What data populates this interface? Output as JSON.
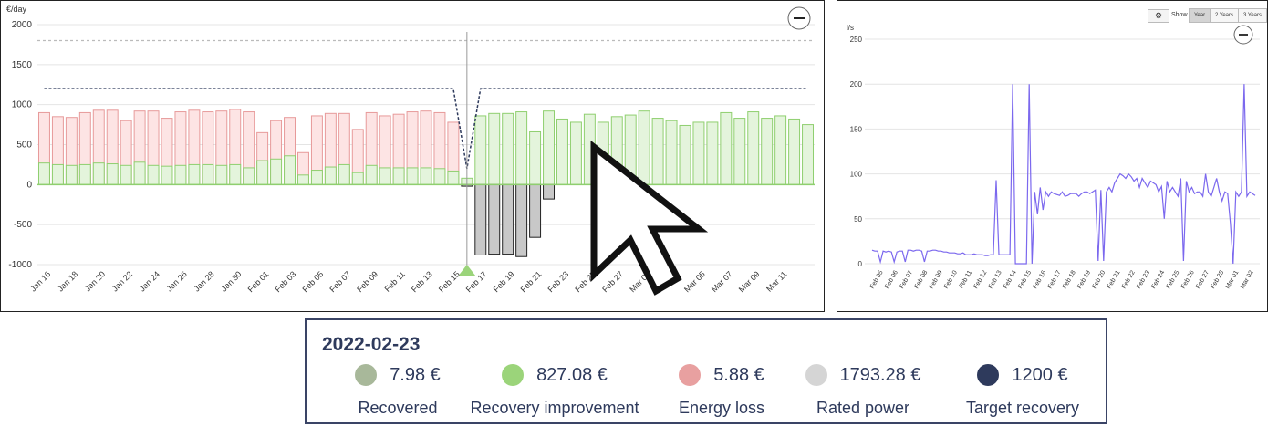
{
  "chart_data": [
    {
      "type": "bar",
      "ylabel": "€/day",
      "ylim": [
        -1000,
        2000
      ],
      "yticks": [
        "2000",
        "1500",
        "1000",
        "500",
        "0",
        "-500",
        "-1000"
      ],
      "xtick_labels": [
        "Jan 16",
        "Jan 18",
        "Jan 20",
        "Jan 22",
        "Jan 24",
        "Jan 26",
        "Jan 28",
        "Jan 30",
        "Feb 01",
        "Feb 03",
        "Feb 05",
        "Feb 07",
        "Feb 09",
        "Feb 11",
        "Feb 13",
        "Feb 15",
        "Feb 17",
        "Feb 19",
        "Feb 21",
        "Feb 23",
        "Feb 25",
        "Feb 27",
        "Mar 01",
        "Mar 03",
        "Mar 05",
        "Mar 07",
        "Mar 09",
        "Mar 11"
      ],
      "rated_power_line": 1800,
      "series": [
        {
          "key": "total",
          "values": [
            900,
            850,
            840,
            900,
            930,
            930,
            800,
            920,
            920,
            830,
            910,
            930,
            910,
            920,
            940,
            910,
            650,
            800,
            840,
            400,
            860,
            890,
            890,
            690,
            900,
            860,
            880,
            910,
            920,
            900,
            780,
            80,
            860,
            890,
            890,
            910,
            660,
            920,
            820,
            780,
            880,
            780,
            850,
            870,
            920,
            830,
            800,
            740,
            780,
            780,
            900,
            830,
            910,
            830,
            860,
            820,
            750
          ]
        },
        {
          "key": "recovered",
          "values": [
            270,
            250,
            240,
            250,
            270,
            260,
            240,
            280,
            240,
            230,
            240,
            250,
            250,
            240,
            250,
            210,
            300,
            320,
            360,
            120,
            180,
            220,
            250,
            150,
            240,
            210,
            210,
            210,
            210,
            200,
            170,
            -20,
            -880,
            -870,
            -870,
            -900,
            -660,
            -180,
            0,
            0,
            0,
            0,
            0,
            0,
            0,
            0,
            0,
            0,
            0,
            0,
            0,
            0,
            0,
            0,
            0,
            0,
            0
          ]
        },
        {
          "key": "green",
          "values": [
            0,
            0,
            0,
            0,
            0,
            0,
            0,
            0,
            0,
            0,
            0,
            0,
            0,
            0,
            0,
            0,
            0,
            0,
            0,
            0,
            0,
            0,
            0,
            0,
            0,
            0,
            0,
            0,
            0,
            0,
            0,
            80,
            860,
            890,
            890,
            910,
            660,
            920,
            820,
            780,
            880,
            780,
            850,
            870,
            920,
            830,
            800,
            740,
            780,
            780,
            900,
            830,
            910,
            830,
            860,
            820,
            750
          ]
        }
      ],
      "target_recovery": [
        1200,
        1200,
        1200,
        1200,
        1200,
        1200,
        1200,
        1200,
        1200,
        1200,
        1200,
        1200,
        1200,
        1200,
        1200,
        1200,
        1200,
        1200,
        1200,
        1200,
        1200,
        1200,
        1200,
        1200,
        1200,
        1200,
        1200,
        1200,
        1200,
        1200,
        1200,
        200,
        1200,
        1200,
        1200,
        1200,
        1200,
        1200,
        1200,
        1200,
        1200,
        1200,
        1200,
        1200,
        1200,
        1200,
        1200,
        1200,
        1200,
        1200,
        1200,
        1200,
        1200,
        1200,
        1200,
        1200,
        1200
      ]
    },
    {
      "type": "line",
      "ylabel": "l/s",
      "ylim": [
        0,
        250
      ],
      "yticks": [
        "250",
        "200",
        "150",
        "100",
        "50",
        "0"
      ],
      "xtick_labels": [
        "Feb 05",
        "Feb 06",
        "Feb 07",
        "Feb 08",
        "Feb 09",
        "Feb 10",
        "Feb 11",
        "Feb 12",
        "Feb 13",
        "Feb 14",
        "Feb 15",
        "Feb 16",
        "Feb 17",
        "Feb 18",
        "Feb 19",
        "Feb 20",
        "Feb 21",
        "Feb 22",
        "Feb 23",
        "Feb 24",
        "Feb 25",
        "Feb 26",
        "Feb 27",
        "Feb 28",
        "Mar 01",
        "Mar 02"
      ],
      "values": [
        15,
        14,
        14,
        2,
        14,
        13,
        14,
        13,
        2,
        13,
        14,
        14,
        2,
        15,
        15,
        14,
        15,
        15,
        14,
        2,
        14,
        14,
        15,
        15,
        14,
        14,
        13,
        13,
        12,
        12,
        12,
        11,
        11,
        12,
        10,
        10,
        10,
        11,
        10,
        10,
        10,
        9,
        9,
        10,
        10,
        93,
        10,
        10,
        10,
        10,
        10,
        200,
        0,
        0,
        0,
        0,
        0,
        200,
        0,
        80,
        55,
        85,
        60,
        80,
        75,
        80,
        78,
        77,
        76,
        80,
        75,
        76,
        78,
        78,
        78,
        75,
        78,
        80,
        80,
        78,
        80,
        82,
        3,
        82,
        3,
        80,
        85,
        80,
        90,
        95,
        100,
        98,
        95,
        100,
        97,
        92,
        95,
        85,
        95,
        90,
        85,
        92,
        90,
        88,
        80,
        86,
        50,
        92,
        80,
        85,
        80,
        75,
        95,
        3,
        92,
        80,
        85,
        78,
        80,
        80,
        75,
        100,
        80,
        75,
        85,
        95,
        80,
        70,
        80,
        78,
        45,
        0,
        80,
        75,
        80,
        200,
        75,
        80,
        78,
        76
      ]
    },
    {
      "type": "table",
      "date": "2022-02-23",
      "items": [
        {
          "value": "7.98 €",
          "label": "Recovered",
          "color": "#a8b89a"
        },
        {
          "value": "827.08 €",
          "label": "Recovery improvement",
          "color": "#9bd47a"
        },
        {
          "value": "5.88 €",
          "label": "Energy loss",
          "color": "#e8a0a0"
        },
        {
          "value": "1793.28 €",
          "label": "Rated power",
          "color": "#d5d5d5"
        },
        {
          "value": "1200 €",
          "label": "Target recovery",
          "color": "#2e3a5c"
        }
      ]
    }
  ],
  "right_panel": {
    "show_label": "Show",
    "buttons": [
      "Year",
      "2 Years",
      "3 Years"
    ]
  }
}
